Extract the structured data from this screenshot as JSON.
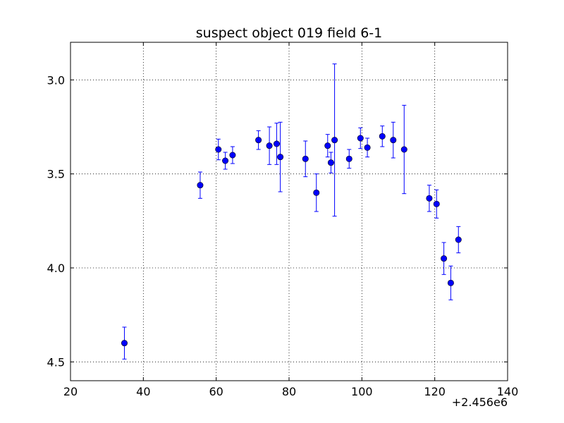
{
  "chart_data": {
    "type": "scatter",
    "title": "suspect object 019 field 6-1",
    "xlabel": "",
    "ylabel": "",
    "x_offset_label": "+2.456e6",
    "xlim": [
      20,
      140
    ],
    "ylim": [
      4.6,
      2.8
    ],
    "y_inverted": true,
    "grid": true,
    "x_ticks": [
      20,
      40,
      60,
      80,
      100,
      120,
      140
    ],
    "x_tick_labels": [
      "20",
      "40",
      "60",
      "80",
      "100",
      "120",
      "140"
    ],
    "y_ticks": [
      3.0,
      3.5,
      4.0,
      4.5
    ],
    "y_tick_labels": [
      "3.0",
      "3.5",
      "4.0",
      "4.5"
    ],
    "marker_color": "#0000ff",
    "series": [
      {
        "points": [
          {
            "x": 34.8,
            "y": 4.4,
            "err": 0.085
          },
          {
            "x": 55.6,
            "y": 3.56,
            "err": 0.07
          },
          {
            "x": 60.6,
            "y": 3.37,
            "err": 0.055
          },
          {
            "x": 62.5,
            "y": 3.43,
            "err": 0.045
          },
          {
            "x": 64.5,
            "y": 3.4,
            "err": 0.045
          },
          {
            "x": 71.6,
            "y": 3.32,
            "err": 0.05
          },
          {
            "x": 74.6,
            "y": 3.35,
            "err": 0.1
          },
          {
            "x": 76.6,
            "y": 3.34,
            "err": 0.11
          },
          {
            "x": 77.6,
            "y": 3.41,
            "err": 0.185
          },
          {
            "x": 84.5,
            "y": 3.42,
            "err": 0.095
          },
          {
            "x": 87.5,
            "y": 3.6,
            "err": 0.1
          },
          {
            "x": 90.6,
            "y": 3.35,
            "err": 0.06
          },
          {
            "x": 91.5,
            "y": 3.44,
            "err": 0.055
          },
          {
            "x": 92.5,
            "y": 3.32,
            "err": 0.405
          },
          {
            "x": 96.5,
            "y": 3.42,
            "err": 0.05
          },
          {
            "x": 99.6,
            "y": 3.31,
            "err": 0.055
          },
          {
            "x": 101.5,
            "y": 3.36,
            "err": 0.05
          },
          {
            "x": 105.6,
            "y": 3.3,
            "err": 0.055
          },
          {
            "x": 108.6,
            "y": 3.32,
            "err": 0.095
          },
          {
            "x": 111.6,
            "y": 3.37,
            "err": 0.235
          },
          {
            "x": 118.5,
            "y": 3.63,
            "err": 0.07
          },
          {
            "x": 120.5,
            "y": 3.66,
            "err": 0.075
          },
          {
            "x": 122.5,
            "y": 3.95,
            "err": 0.085
          },
          {
            "x": 124.4,
            "y": 4.08,
            "err": 0.09
          },
          {
            "x": 126.5,
            "y": 3.85,
            "err": 0.07
          }
        ]
      }
    ]
  }
}
